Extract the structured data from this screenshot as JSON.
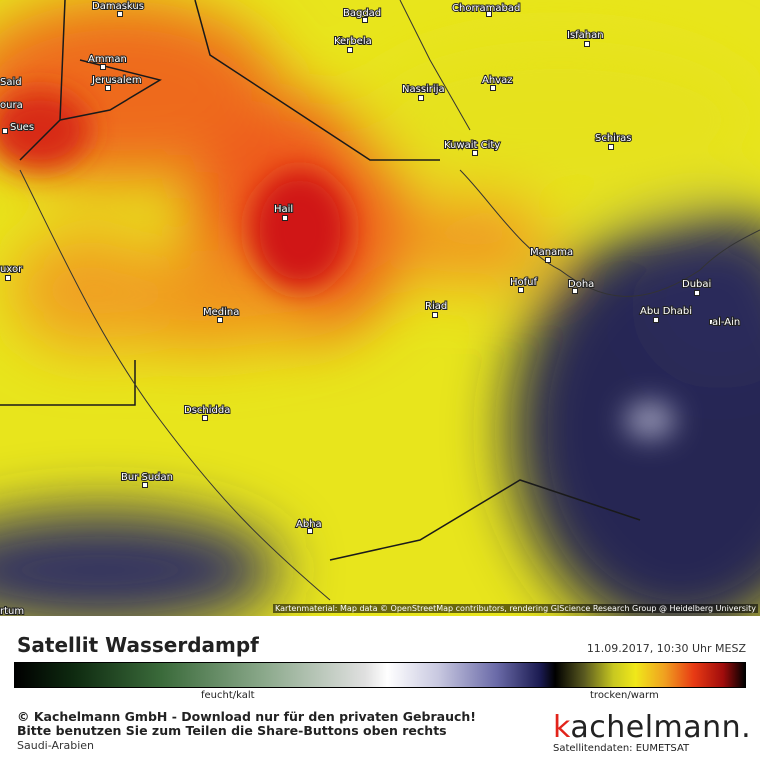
{
  "map": {
    "cities": [
      "Damaskus",
      "Bagdad",
      "Chorramabad",
      "Isfahan",
      "Kerbela",
      "Amman",
      "Jerusalem",
      "Said",
      "Ahvaz",
      "Nassirija",
      "oura",
      "Sues",
      "Schiras",
      "Kuwait City",
      "Hail",
      "Manama",
      "Hofuf",
      "Doha",
      "Dubai",
      "uxor",
      "Riad",
      "Abu Dhabi",
      "Medina",
      "al-Ain",
      "Dschidda",
      "Bur Sudan",
      "Abha",
      "rtum"
    ],
    "attribution": "Kartenmaterial: Map data © OpenStreetMap contributors, rendering GIScience Research Group @ Heidelberg University"
  },
  "footer": {
    "title": "Satellit Wasserdampf",
    "timestamp": "11.09.2017, 10:30 Uhr MESZ",
    "scale_low": "feucht/kalt",
    "scale_high": "trocken/warm",
    "copyright": "© Kachelmann GmbH - Download nur für den privaten Gebrauch!",
    "notice": "Bitte benutzen Sie zum Teilen die Share-Buttons oben rechts",
    "region": "Saudi-Arabien",
    "logo": "kachelmann.",
    "data_source": "Satellitendaten: EUMETSAT"
  }
}
